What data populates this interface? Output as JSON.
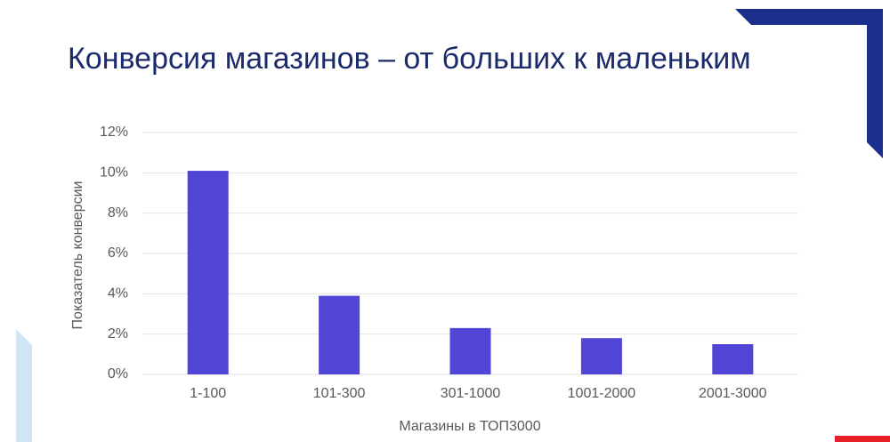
{
  "chart_data": {
    "type": "bar",
    "title": "Конверсия магазинов – от больших к маленьким",
    "x_label": "Магазины в ТОП3000",
    "y_label": "Показатель конверсии",
    "categories": [
      "1-100",
      "101-300",
      "301-1000",
      "1001-2000",
      "2001-3000"
    ],
    "values": [
      10.1,
      3.9,
      2.3,
      1.8,
      1.5
    ],
    "color": "#5145d6",
    "ylim": [
      0,
      12
    ],
    "yticks": [
      {
        "value": 0,
        "label": "0%"
      },
      {
        "value": 2,
        "label": "2%"
      },
      {
        "value": 4,
        "label": "4%"
      },
      {
        "value": 6,
        "label": "6%"
      },
      {
        "value": 8,
        "label": "8%"
      },
      {
        "value": 10,
        "label": "10%"
      },
      {
        "value": 12,
        "label": "12%"
      }
    ],
    "grid": true
  }
}
